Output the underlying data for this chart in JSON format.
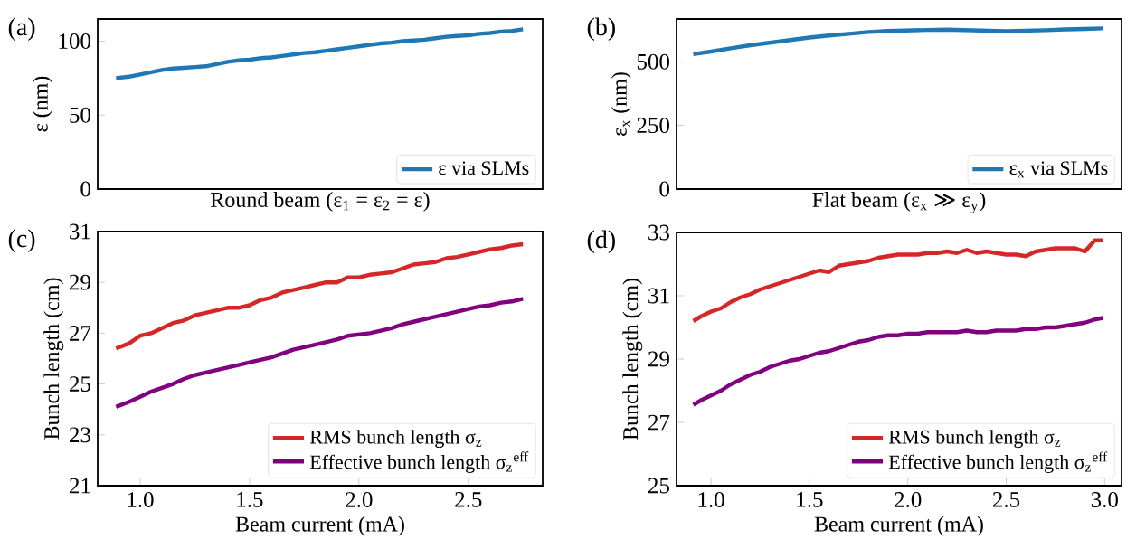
{
  "chart_data": [
    {
      "type": "line",
      "xlabel": "Round beam (ε$_{1}$ = ε$_{2}$ = ε)",
      "ylabel": "ε (nm)",
      "annotations": [
        "(a)"
      ],
      "xlim": [
        0.806,
        2.84
      ],
      "ylim": [
        0,
        115
      ],
      "yticks": [
        0,
        50,
        100
      ],
      "tick_labels": "y",
      "legend": "bottom right",
      "x": [
        0.89,
        0.95,
        1.0,
        1.05,
        1.1,
        1.15,
        1.2,
        1.25,
        1.3,
        1.35,
        1.4,
        1.45,
        1.5,
        1.55,
        1.6,
        1.65,
        1.7,
        1.75,
        1.8,
        1.85,
        1.9,
        1.95,
        2.0,
        2.05,
        2.1,
        2.15,
        2.2,
        2.25,
        2.3,
        2.35,
        2.4,
        2.45,
        2.5,
        2.55,
        2.6,
        2.65,
        2.7,
        2.75
      ],
      "series": [
        {
          "name": "ε via SLMs",
          "color": "#1f77b4",
          "values": [
            75,
            76,
            77.5,
            79,
            80.5,
            81.5,
            82,
            82.5,
            83,
            84.5,
            86,
            87,
            87.5,
            88.5,
            89,
            90,
            91,
            92,
            92.5,
            93.5,
            94.5,
            95.5,
            96.5,
            97.5,
            98.5,
            99,
            100,
            100.5,
            101,
            102,
            103,
            103.5,
            104,
            105,
            105.5,
            106.5,
            107,
            108
          ]
        }
      ]
    },
    {
      "type": "line",
      "xlabel": "Flat beam (ε$_{x}$ ≫ ε$_{y}$)",
      "ylabel": "ε$_{x}$ (nm)",
      "annotations": [
        "(b)"
      ],
      "xlim": [
        0.825,
        3.086
      ],
      "ylim": [
        0,
        668
      ],
      "yticks": [
        0,
        250,
        500
      ],
      "tick_labels": "y",
      "legend": "bottom right",
      "x": [
        0.91,
        1.0,
        1.1,
        1.2,
        1.3,
        1.4,
        1.5,
        1.6,
        1.7,
        1.8,
        1.9,
        2.0,
        2.1,
        2.2,
        2.3,
        2.4,
        2.5,
        2.6,
        2.7,
        2.8,
        2.9,
        2.99
      ],
      "series": [
        {
          "name": "ε$_{x}$ via SLMs",
          "color": "#1f77b4",
          "values": [
            530,
            540,
            553,
            565,
            575,
            585,
            595,
            603,
            610,
            617,
            621,
            623,
            625,
            626,
            624,
            622,
            620,
            622,
            624,
            627,
            629,
            631
          ]
        }
      ]
    },
    {
      "type": "line",
      "xlabel": "Beam current (mA)",
      "ylabel": "Bunch length (cm)",
      "annotations": [
        "(c)"
      ],
      "xlim": [
        0.806,
        2.84
      ],
      "ylim": [
        21,
        31
      ],
      "xticks": [
        {
          "value": 1.0,
          "label": "1.0"
        },
        {
          "value": 1.5,
          "label": "1.5"
        },
        {
          "value": 2.0,
          "label": "2.0"
        },
        {
          "value": 2.5,
          "label": "2.5"
        }
      ],
      "yticks": [
        21,
        23,
        25,
        27,
        29,
        31
      ],
      "legend": "bottom right",
      "x": [
        0.89,
        0.95,
        1.0,
        1.05,
        1.1,
        1.15,
        1.2,
        1.25,
        1.3,
        1.35,
        1.4,
        1.45,
        1.5,
        1.55,
        1.6,
        1.65,
        1.7,
        1.75,
        1.8,
        1.85,
        1.9,
        1.95,
        2.0,
        2.05,
        2.1,
        2.15,
        2.2,
        2.25,
        2.3,
        2.35,
        2.4,
        2.45,
        2.5,
        2.55,
        2.6,
        2.65,
        2.7,
        2.75
      ],
      "series": [
        {
          "name": "RMS bunch length σ$_{z}$",
          "color": "#d62728",
          "values": [
            26.4,
            26.6,
            26.9,
            27.0,
            27.2,
            27.4,
            27.5,
            27.7,
            27.8,
            27.9,
            28.0,
            28.0,
            28.1,
            28.3,
            28.4,
            28.6,
            28.7,
            28.8,
            28.9,
            29.0,
            29.0,
            29.2,
            29.2,
            29.3,
            29.35,
            29.4,
            29.55,
            29.7,
            29.75,
            29.8,
            29.95,
            30.0,
            30.1,
            30.2,
            30.3,
            30.35,
            30.45,
            30.5
          ]
        },
        {
          "name": "Effective bunch length σ$_{z}$$^{eff}$",
          "color": "#800080",
          "values": [
            24.1,
            24.3,
            24.5,
            24.7,
            24.85,
            25.0,
            25.2,
            25.35,
            25.45,
            25.55,
            25.65,
            25.75,
            25.85,
            25.95,
            26.05,
            26.2,
            26.35,
            26.45,
            26.55,
            26.65,
            26.75,
            26.9,
            26.95,
            27.0,
            27.1,
            27.2,
            27.35,
            27.45,
            27.55,
            27.65,
            27.75,
            27.85,
            27.95,
            28.05,
            28.1,
            28.2,
            28.25,
            28.35
          ]
        }
      ]
    },
    {
      "type": "line",
      "xlabel": "Beam current (mA)",
      "ylabel": "Bunch length (cm)",
      "annotations": [
        "(d)"
      ],
      "xlim": [
        0.825,
        3.086
      ],
      "ylim": [
        25,
        33
      ],
      "xticks": [
        {
          "value": 1.0,
          "label": "1.0"
        },
        {
          "value": 1.5,
          "label": "1.5"
        },
        {
          "value": 2.0,
          "label": "2.0"
        },
        {
          "value": 2.5,
          "label": "2.5"
        },
        {
          "value": 3.0,
          "label": "3.0"
        }
      ],
      "yticks": [
        25,
        27,
        29,
        31,
        33
      ],
      "legend": "bottom right",
      "x": [
        0.91,
        0.95,
        1.0,
        1.05,
        1.1,
        1.15,
        1.2,
        1.25,
        1.3,
        1.35,
        1.4,
        1.45,
        1.5,
        1.55,
        1.6,
        1.65,
        1.7,
        1.75,
        1.8,
        1.85,
        1.9,
        1.95,
        2.0,
        2.05,
        2.1,
        2.15,
        2.2,
        2.25,
        2.3,
        2.35,
        2.4,
        2.45,
        2.5,
        2.55,
        2.6,
        2.65,
        2.7,
        2.75,
        2.8,
        2.85,
        2.9,
        2.95,
        2.99
      ],
      "series": [
        {
          "name": "RMS bunch length σ$_{z}$",
          "color": "#d62728",
          "values": [
            30.2,
            30.35,
            30.5,
            30.6,
            30.8,
            30.95,
            31.05,
            31.2,
            31.3,
            31.4,
            31.5,
            31.6,
            31.7,
            31.8,
            31.75,
            31.95,
            32.0,
            32.05,
            32.1,
            32.2,
            32.25,
            32.3,
            32.3,
            32.3,
            32.35,
            32.35,
            32.4,
            32.35,
            32.45,
            32.35,
            32.4,
            32.35,
            32.3,
            32.3,
            32.25,
            32.4,
            32.45,
            32.5,
            32.5,
            32.5,
            32.4,
            32.75,
            32.75
          ]
        },
        {
          "name": "Effective bunch length σ$_{z}$$^{eff}$",
          "color": "#800080",
          "values": [
            27.55,
            27.7,
            27.85,
            28.0,
            28.2,
            28.35,
            28.5,
            28.6,
            28.75,
            28.85,
            28.95,
            29.0,
            29.1,
            29.2,
            29.25,
            29.35,
            29.45,
            29.55,
            29.6,
            29.7,
            29.75,
            29.75,
            29.8,
            29.8,
            29.85,
            29.85,
            29.85,
            29.85,
            29.9,
            29.85,
            29.85,
            29.9,
            29.9,
            29.9,
            29.95,
            29.95,
            30.0,
            30.0,
            30.05,
            30.1,
            30.15,
            30.25,
            30.3
          ]
        }
      ]
    }
  ]
}
